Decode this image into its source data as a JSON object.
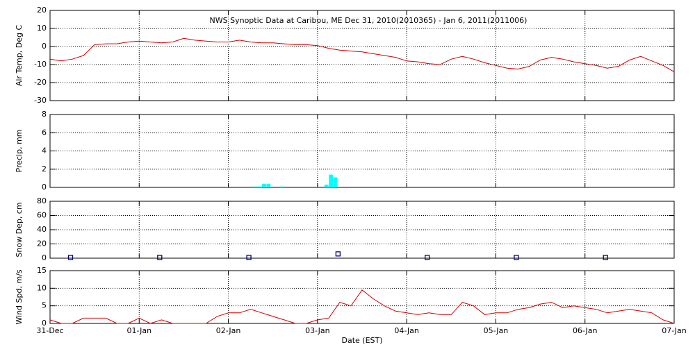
{
  "chart_data": [
    {
      "type": "line",
      "title": "NWS Synoptic Data at Caribou, ME   Dec 31, 2010(2010365) - Jan  6, 2011(2011006)",
      "ylabel": "Air Temp, Deg C",
      "xlim": [
        0,
        7
      ],
      "xticks": [
        1,
        2,
        3,
        4,
        5,
        6
      ],
      "ylim": [
        -30,
        20
      ],
      "yticks": [
        -30,
        -20,
        -10,
        0,
        10,
        20
      ],
      "grid": true,
      "x": [
        0,
        0.125,
        0.25,
        0.375,
        0.5,
        0.625,
        0.75,
        0.875,
        1,
        1.125,
        1.25,
        1.375,
        1.5,
        1.625,
        1.75,
        1.875,
        2,
        2.125,
        2.25,
        2.375,
        2.5,
        2.625,
        2.75,
        2.875,
        3,
        3.125,
        3.25,
        3.375,
        3.5,
        3.625,
        3.75,
        3.875,
        4,
        4.125,
        4.25,
        4.375,
        4.5,
        4.625,
        4.75,
        4.875,
        5,
        5.125,
        5.25,
        5.375,
        5.5,
        5.625,
        5.75,
        5.875,
        6,
        6.125,
        6.25,
        6.375,
        6.5,
        6.625,
        6.75,
        6.875,
        7
      ],
      "series": [
        {
          "color": "#cc0000",
          "values": [
            -7,
            -8,
            -7,
            -5,
            1,
            1.5,
            1.5,
            2.5,
            3,
            2.5,
            2,
            2.5,
            4.5,
            3.5,
            3,
            2.5,
            2.5,
            3.5,
            2.5,
            2,
            2,
            1.5,
            1,
            1,
            0.5,
            -1,
            -2,
            -2.5,
            -3,
            -4,
            -5,
            -6,
            -8,
            -8.5,
            -9.5,
            -10,
            -7,
            -5.5,
            -7,
            -9,
            -10.5,
            -12,
            -12.5,
            -11,
            -7.5,
            -6,
            -7,
            -8.5,
            -9.5,
            -10.5,
            -12,
            -11,
            -7.5,
            -5.5,
            -8,
            -10.5,
            -14
          ]
        }
      ]
    },
    {
      "type": "bar",
      "ylabel": "Precip, mm",
      "xlim": [
        0,
        7
      ],
      "xticks": [
        1,
        2,
        3,
        4,
        5,
        6
      ],
      "ylim": [
        0,
        8
      ],
      "yticks": [
        0,
        2,
        4,
        6,
        8
      ],
      "grid": true,
      "x": [
        2.3,
        2.35,
        2.4,
        2.45,
        2.6,
        3.1,
        3.15,
        3.2
      ],
      "series": [
        {
          "color": "#00ffff",
          "values": [
            0.1,
            0.1,
            0.4,
            0.4,
            0.1,
            0.3,
            1.4,
            1.1
          ]
        }
      ]
    },
    {
      "type": "scatter",
      "ylabel": "Snow Dep, cm",
      "xlim": [
        0,
        7
      ],
      "xticks": [
        1,
        2,
        3,
        4,
        5,
        6
      ],
      "ylim": [
        0,
        80
      ],
      "yticks": [
        0,
        20,
        40,
        60,
        80
      ],
      "grid": true,
      "x": [
        0.23,
        1.23,
        2.23,
        3.23,
        4.23,
        5.23,
        6.23
      ],
      "series": [
        {
          "color": "#000080",
          "values": [
            1,
            1,
            1,
            6,
            1,
            1,
            1
          ]
        }
      ]
    },
    {
      "type": "line",
      "ylabel": "Wind Spd, m/s",
      "xlabel": "Date (EST)",
      "xlim": [
        0,
        7
      ],
      "xticks": [
        {
          "value": 0,
          "label": "31-Dec"
        },
        {
          "value": 1,
          "label": "01-Jan"
        },
        {
          "value": 2,
          "label": "02-Jan"
        },
        {
          "value": 3,
          "label": "03-Jan"
        },
        {
          "value": 4,
          "label": "04-Jan"
        },
        {
          "value": 5,
          "label": "05-Jan"
        },
        {
          "value": 6,
          "label": "06-Jan"
        },
        {
          "value": 7,
          "label": "07-Jan"
        }
      ],
      "ylim": [
        0,
        15
      ],
      "yticks": [
        0,
        5,
        10,
        15
      ],
      "grid": true,
      "x": [
        0,
        0.125,
        0.25,
        0.375,
        0.5,
        0.625,
        0.75,
        0.875,
        1,
        1.125,
        1.25,
        1.375,
        1.5,
        1.625,
        1.75,
        1.875,
        2,
        2.125,
        2.25,
        2.375,
        2.5,
        2.625,
        2.75,
        2.875,
        3,
        3.125,
        3.25,
        3.375,
        3.5,
        3.625,
        3.75,
        3.875,
        4,
        4.125,
        4.25,
        4.375,
        4.5,
        4.625,
        4.75,
        4.875,
        5,
        5.125,
        5.25,
        5.375,
        5.5,
        5.625,
        5.75,
        5.875,
        6,
        6.125,
        6.25,
        6.375,
        6.5,
        6.625,
        6.75,
        6.875,
        7
      ],
      "series": [
        {
          "color": "#cc0000",
          "values": [
            1,
            0,
            0,
            1.5,
            1.5,
            1.5,
            0,
            0,
            1.5,
            0,
            1,
            0,
            0,
            0,
            0,
            2,
            3,
            3,
            4,
            3,
            2,
            1,
            0,
            0,
            1,
            1.5,
            6,
            5,
            9.5,
            7,
            5,
            3.5,
            3,
            2.5,
            3,
            2.5,
            2.5,
            6,
            5,
            2.5,
            3,
            3,
            4,
            4.5,
            5.5,
            6,
            4.5,
            5,
            4.5,
            4,
            3,
            3.5,
            4,
            3.5,
            3,
            1,
            0
          ]
        }
      ]
    }
  ]
}
